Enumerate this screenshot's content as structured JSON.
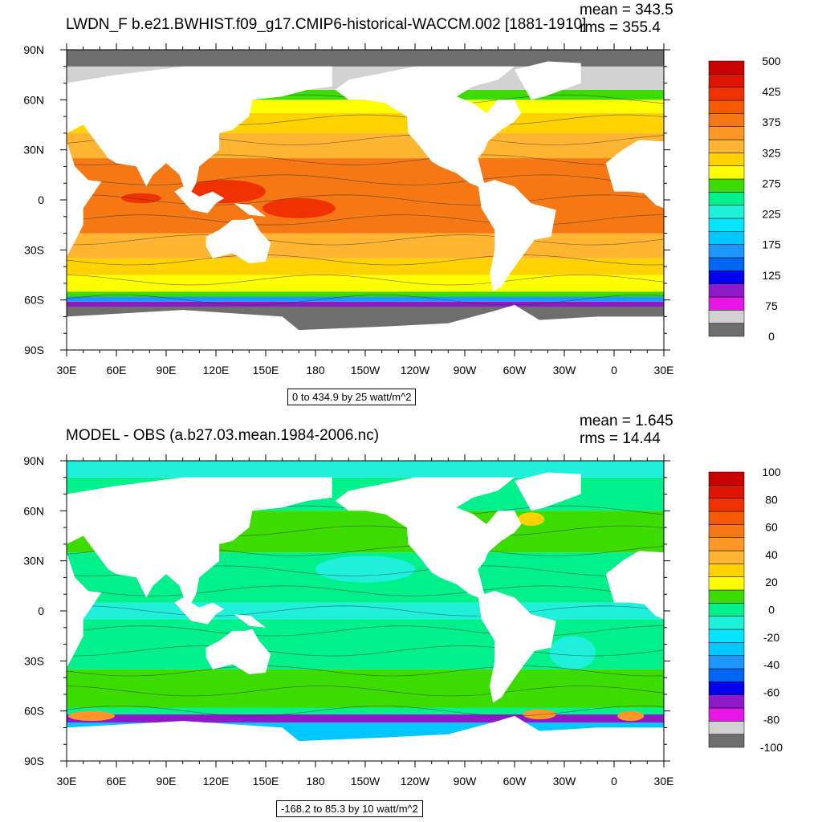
{
  "chart_data": [
    {
      "type": "heatmap",
      "title": "LWDN_F b.e21.BWHIST.f09_g17.CMIP6-historical-WACCM.002 [1881-1910]",
      "stats": {
        "mean": "mean = 343.5",
        "rms": "rms = 355.4"
      },
      "range_label": "0 to 434.9 by 25 watt/m^2",
      "x_ticks": [
        "30E",
        "60E",
        "90E",
        "120E",
        "150E",
        "180",
        "150W",
        "120W",
        "90W",
        "60W",
        "30W",
        "0",
        "30E"
      ],
      "y_ticks": [
        "90N",
        "60N",
        "30N",
        "0",
        "30S",
        "60S",
        "90S"
      ],
      "xlim": [
        30,
        390
      ],
      "ylim": [
        -90,
        90
      ],
      "colorbar": {
        "colors": [
          "#6e6e6e",
          "#d2d2d2",
          "#e616e6",
          "#8c1ac8",
          "#0000f0",
          "#0064f5",
          "#1e96ff",
          "#00c8ff",
          "#00e6ff",
          "#1ef0dc",
          "#00f08c",
          "#3cdc00",
          "#ffff00",
          "#ffd200",
          "#ffb432",
          "#ff9628",
          "#f57814",
          "#f55a00",
          "#f03200",
          "#dc1400",
          "#c80000"
        ],
        "labels": [
          "0",
          "75",
          "125",
          "175",
          "225",
          "275",
          "325",
          "375",
          "425",
          "500"
        ]
      },
      "bands": [
        {
          "lat": [
            -90,
            -64
          ],
          "color": "#6e6e6e"
        },
        {
          "lat": [
            -64,
            -61
          ],
          "color": "#8c1ac8"
        },
        {
          "lat": [
            -61,
            -58
          ],
          "color": "#1e96ff"
        },
        {
          "lat": [
            -58,
            -55
          ],
          "color": "#3cdc00"
        },
        {
          "lat": [
            -55,
            -45
          ],
          "color": "#ffff00"
        },
        {
          "lat": [
            -45,
            -35
          ],
          "color": "#ffd200"
        },
        {
          "lat": [
            -35,
            -20
          ],
          "color": "#ffb432"
        },
        {
          "lat": [
            -20,
            25
          ],
          "color": "#f57814"
        },
        {
          "lat": [
            25,
            40
          ],
          "color": "#ffb432"
        },
        {
          "lat": [
            40,
            52
          ],
          "color": "#ffd200"
        },
        {
          "lat": [
            52,
            60
          ],
          "color": "#ffff00"
        },
        {
          "lat": [
            60,
            66
          ],
          "color": "#3cdc00"
        },
        {
          "lat": [
            66,
            80
          ],
          "color": "#d2d2d2"
        },
        {
          "lat": [
            80,
            90
          ],
          "color": "#6e6e6e"
        }
      ],
      "hotspots": [
        {
          "lon": 125,
          "lat": 5,
          "rx": 25,
          "ry": 7,
          "color": "#f03200"
        },
        {
          "lon": 170,
          "lat": -5,
          "rx": 22,
          "ry": 6,
          "color": "#f03200"
        },
        {
          "lon": 75,
          "lat": 1,
          "rx": 12,
          "ry": 3,
          "color": "#f03200"
        }
      ]
    },
    {
      "type": "heatmap",
      "title": "MODEL - OBS (a.b27.03.mean.1984-2006.nc)",
      "stats": {
        "mean": "mean = 1.645",
        "rms": "rms = 14.44"
      },
      "range_label": "-168.2 to 85.3 by 10 watt/m^2",
      "x_ticks": [
        "30E",
        "60E",
        "90E",
        "120E",
        "150E",
        "180",
        "150W",
        "120W",
        "90W",
        "60W",
        "30W",
        "0",
        "30E"
      ],
      "y_ticks": [
        "90N",
        "60N",
        "30N",
        "0",
        "30S",
        "60S",
        "90S"
      ],
      "xlim": [
        30,
        390
      ],
      "ylim": [
        -90,
        90
      ],
      "colorbar": {
        "colors": [
          "#6e6e6e",
          "#d2d2d2",
          "#e616e6",
          "#8c1ac8",
          "#0000f0",
          "#0064f5",
          "#1e96ff",
          "#00c8ff",
          "#00e6ff",
          "#1ef0dc",
          "#00f08c",
          "#3cdc00",
          "#ffff00",
          "#ffd200",
          "#ffb432",
          "#ff9628",
          "#f57814",
          "#f55a00",
          "#f03200",
          "#dc1400",
          "#c80000"
        ],
        "labels": [
          "100",
          "80",
          "60",
          "40",
          "20",
          "0",
          "-20",
          "-40",
          "-60",
          "-80",
          "-100"
        ]
      },
      "bands": [
        {
          "lat": [
            -90,
            -67
          ],
          "color": "#00c8ff"
        },
        {
          "lat": [
            -67,
            -62
          ],
          "color": "#8c1ac8"
        },
        {
          "lat": [
            -62,
            -58
          ],
          "color": "#00f08c"
        },
        {
          "lat": [
            -58,
            -35
          ],
          "color": "#3cdc00"
        },
        {
          "lat": [
            -35,
            -5
          ],
          "color": "#00f08c"
        },
        {
          "lat": [
            -5,
            5
          ],
          "color": "#1ef0dc"
        },
        {
          "lat": [
            5,
            35
          ],
          "color": "#00f08c"
        },
        {
          "lat": [
            35,
            60
          ],
          "color": "#3cdc00"
        },
        {
          "lat": [
            60,
            80
          ],
          "color": "#00f08c"
        },
        {
          "lat": [
            80,
            90
          ],
          "color": "#1ef0dc"
        }
      ],
      "hotspots": [
        {
          "lon": 45,
          "lat": -63,
          "rx": 14,
          "ry": 3,
          "color": "#ff9628"
        },
        {
          "lon": 315,
          "lat": -62,
          "rx": 10,
          "ry": 3,
          "color": "#ff9628"
        },
        {
          "lon": 370,
          "lat": -63,
          "rx": 8,
          "ry": 3,
          "color": "#ff9628"
        },
        {
          "lon": 335,
          "lat": -25,
          "rx": 14,
          "ry": 10,
          "color": "#1ef0dc"
        },
        {
          "lon": 210,
          "lat": 25,
          "rx": 30,
          "ry": 8,
          "color": "#1ef0dc"
        },
        {
          "lon": 310,
          "lat": 55,
          "rx": 8,
          "ry": 4,
          "color": "#ffd200"
        }
      ]
    }
  ],
  "land_color": "#ffffff"
}
